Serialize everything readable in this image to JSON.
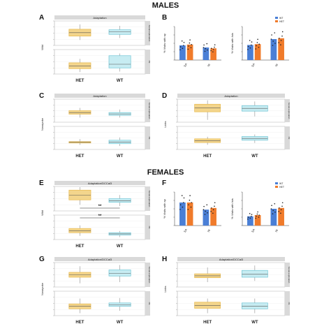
{
  "sections": {
    "males": "MALES",
    "females": "FEMALES"
  },
  "letters": {
    "A": "A",
    "B": "B",
    "C": "C",
    "D": "D",
    "E": "E",
    "F": "F",
    "G": "G",
    "H": "H"
  },
  "colors": {
    "het": "#e8b84b",
    "het_fill": "#f3d58c",
    "wt": "#6fc6d6",
    "wt_fill": "#c7ecf2",
    "bar_wt": "#4a7fd6",
    "bar_het": "#f07b2b",
    "strip": "#d9d9d9",
    "sig": "#222222"
  },
  "chart_data": [
    {
      "id": "A",
      "type": "box",
      "title": "Adaptation",
      "ylabel": "Wild",
      "categories": [
        "HET",
        "WT"
      ],
      "facets": [
        {
          "label": "Social exploration",
          "ylim": [
            0,
            1
          ],
          "boxes": [
            {
              "group": "HET",
              "q1": 0.38,
              "median": 0.52,
              "q3": 0.66,
              "min": 0.22,
              "max": 0.86
            },
            {
              "group": "WT",
              "q1": 0.45,
              "median": 0.55,
              "q3": 0.64,
              "min": 0.3,
              "max": 0.8
            }
          ]
        },
        {
          "label": "ISI",
          "ylim": [
            0,
            1
          ],
          "boxes": [
            {
              "group": "HET",
              "q1": 0.22,
              "median": 0.33,
              "q3": 0.46,
              "min": 0.08,
              "max": 0.62
            },
            {
              "group": "WT",
              "q1": 0.25,
              "median": 0.4,
              "q3": 0.75,
              "min": 0.1,
              "max": 0.84
            }
          ]
        }
      ]
    },
    {
      "id": "B",
      "type": "bar",
      "categories": [
        "SA",
        "NI"
      ],
      "legend": [
        "WT",
        "HET"
      ],
      "legend_position": "top-right",
      "subplots": [
        {
          "ylabel": "% Visits with sp",
          "ylim": [
            0,
            80
          ],
          "series": [
            {
              "name": "WT",
              "values": [
                35,
                30
              ]
            },
            {
              "name": "HET",
              "values": [
                37,
                28
              ]
            }
          ]
        },
        {
          "ylabel": "% Visits with Isis",
          "ylim": [
            0,
            80
          ],
          "series": [
            {
              "name": "WT",
              "values": [
                36,
                50
              ]
            },
            {
              "name": "HET",
              "values": [
                38,
                52
              ]
            }
          ]
        }
      ]
    },
    {
      "id": "C",
      "type": "box",
      "title": "Adaptation",
      "ylabel": "Nosepoke",
      "categories": [
        "HET",
        "WT"
      ],
      "facets": [
        {
          "label": "Social exploration",
          "ylim": [
            0,
            1
          ],
          "boxes": [
            {
              "group": "HET",
              "q1": 0.35,
              "median": 0.42,
              "q3": 0.5,
              "min": 0.2,
              "max": 0.62
            },
            {
              "group": "WT",
              "q1": 0.3,
              "median": 0.36,
              "q3": 0.42,
              "min": 0.2,
              "max": 0.55
            }
          ]
        },
        {
          "label": "ISI",
          "ylim": [
            0,
            1
          ],
          "boxes": [
            {
              "group": "HET",
              "q1": 0.28,
              "median": 0.31,
              "q3": 0.34,
              "min": 0.2,
              "max": 0.45
            },
            {
              "group": "WT",
              "q1": 0.25,
              "median": 0.32,
              "q3": 0.4,
              "min": 0.15,
              "max": 0.52
            }
          ]
        }
      ]
    },
    {
      "id": "D",
      "type": "box",
      "title": "Adaptation",
      "ylabel": "Licks",
      "categories": [
        "HET",
        "WT"
      ],
      "facets": [
        {
          "label": "Social exploration",
          "ylim": [
            0,
            1
          ],
          "boxes": [
            {
              "group": "HET",
              "q1": 0.45,
              "median": 0.62,
              "q3": 0.78,
              "min": 0.1,
              "max": 0.95
            },
            {
              "group": "WT",
              "q1": 0.48,
              "median": 0.6,
              "q3": 0.72,
              "min": 0.25,
              "max": 0.9
            }
          ]
        },
        {
          "label": "ISI",
          "ylim": [
            0,
            1
          ],
          "boxes": [
            {
              "group": "HET",
              "q1": 0.3,
              "median": 0.38,
              "q3": 0.46,
              "min": 0.2,
              "max": 0.55
            },
            {
              "group": "WT",
              "q1": 0.4,
              "median": 0.48,
              "q3": 0.56,
              "min": 0.28,
              "max": 0.65
            }
          ]
        }
      ]
    },
    {
      "id": "E",
      "type": "box",
      "title": "Adaptation/DCCal3",
      "ylabel": "Wild",
      "categories": [
        "HET",
        "WT"
      ],
      "facets": [
        {
          "label": "Social exploration",
          "ylim": [
            0,
            1
          ],
          "boxes": [
            {
              "group": "HET",
              "q1": 0.45,
              "median": 0.65,
              "q3": 0.85,
              "min": 0.25,
              "max": 0.97
            },
            {
              "group": "WT",
              "q1": 0.35,
              "median": 0.42,
              "q3": 0.5,
              "min": 0.2,
              "max": 0.65
            }
          ],
          "significance": "**"
        },
        {
          "label": "ISI",
          "ylim": [
            0,
            1
          ],
          "boxes": [
            {
              "group": "HET",
              "q1": 0.28,
              "median": 0.36,
              "q3": 0.45,
              "min": 0.15,
              "max": 0.58
            },
            {
              "group": "WT",
              "q1": 0.18,
              "median": 0.23,
              "q3": 0.28,
              "min": 0.1,
              "max": 0.35
            }
          ],
          "significance": "**"
        }
      ]
    },
    {
      "id": "F",
      "type": "bar",
      "categories": [
        "SA",
        "NI"
      ],
      "legend": [
        "WT",
        "HET"
      ],
      "legend_position": "top-right",
      "subplots": [
        {
          "ylabel": "% Visits with sp",
          "ylim": [
            0,
            80
          ],
          "series": [
            {
              "name": "WT",
              "values": [
                55,
                38
              ]
            },
            {
              "name": "HET",
              "values": [
                55,
                42
              ]
            }
          ]
        },
        {
          "ylabel": "% Visits with Isis",
          "ylim": [
            0,
            80
          ],
          "series": [
            {
              "name": "WT",
              "values": [
                22,
                40
              ]
            },
            {
              "name": "HET",
              "values": [
                25,
                42
              ]
            }
          ]
        }
      ]
    },
    {
      "id": "G",
      "type": "box",
      "title": "Adaptation/DCCal3",
      "ylabel": "Nosepoke",
      "categories": [
        "HET",
        "WT"
      ],
      "facets": [
        {
          "label": "Social exploration",
          "ylim": [
            0,
            1
          ],
          "boxes": [
            {
              "group": "HET",
              "q1": 0.4,
              "median": 0.5,
              "q3": 0.6,
              "min": 0.15,
              "max": 0.85
            },
            {
              "group": "WT",
              "q1": 0.45,
              "median": 0.55,
              "q3": 0.7,
              "min": 0.2,
              "max": 0.9
            }
          ]
        },
        {
          "label": "ISI",
          "ylim": [
            0,
            1
          ],
          "boxes": [
            {
              "group": "HET",
              "q1": 0.28,
              "median": 0.38,
              "q3": 0.48,
              "min": 0.1,
              "max": 0.7
            },
            {
              "group": "WT",
              "q1": 0.38,
              "median": 0.45,
              "q3": 0.52,
              "min": 0.2,
              "max": 0.72
            }
          ]
        }
      ]
    },
    {
      "id": "H",
      "type": "box",
      "title": "Adaptation/DCCal3",
      "ylabel": "Licks",
      "categories": [
        "HET",
        "WT"
      ],
      "facets": [
        {
          "label": "Social exploration",
          "ylim": [
            0,
            1
          ],
          "boxes": [
            {
              "group": "HET",
              "q1": 0.38,
              "median": 0.46,
              "q3": 0.54,
              "min": 0.2,
              "max": 0.8
            },
            {
              "group": "WT",
              "q1": 0.4,
              "median": 0.52,
              "q3": 0.68,
              "min": 0.25,
              "max": 0.88
            }
          ]
        },
        {
          "label": "ISI",
          "ylim": [
            0,
            1
          ],
          "boxes": [
            {
              "group": "HET",
              "q1": 0.3,
              "median": 0.42,
              "q3": 0.55,
              "min": 0.1,
              "max": 0.7
            },
            {
              "group": "WT",
              "q1": 0.28,
              "median": 0.38,
              "q3": 0.52,
              "min": 0.1,
              "max": 0.7
            }
          ]
        }
      ]
    }
  ]
}
